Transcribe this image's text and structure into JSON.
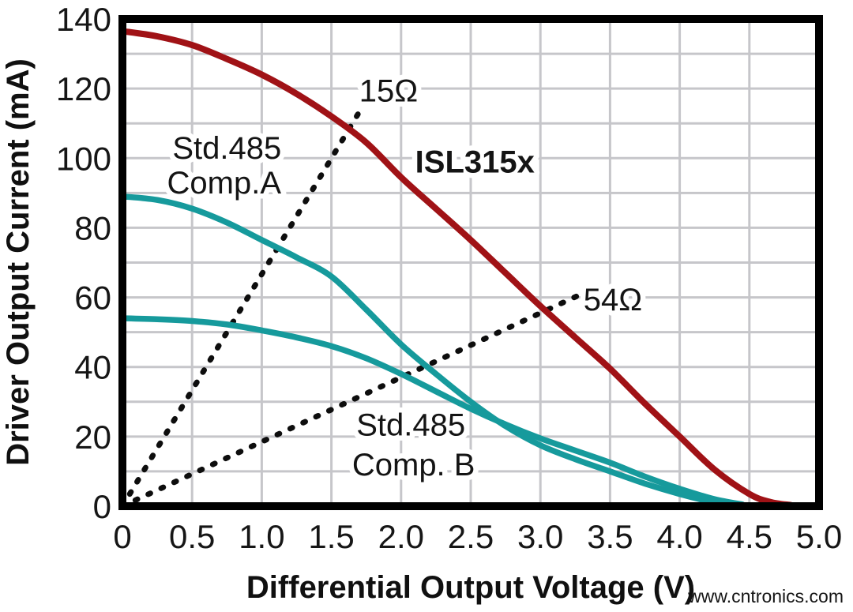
{
  "watermark": {
    "text": "www.cntronics.com",
    "color": "#b9d89d"
  },
  "chart_data": {
    "type": "line",
    "title": "",
    "xlabel": "Differential Output Voltage (V)",
    "ylabel": "Driver Output Current (mA)",
    "xlim": [
      0,
      5.0
    ],
    "ylim": [
      0,
      140
    ],
    "x_tick_values": [
      0,
      0.5,
      1.0,
      1.5,
      2.0,
      2.5,
      3.0,
      3.5,
      4.0,
      4.5,
      5.0
    ],
    "x_ticks": [
      "0",
      "0.5",
      "1.0",
      "1.5",
      "2.0",
      "2.5",
      "3.0",
      "3.5",
      "4.0",
      "4.5",
      "5.0"
    ],
    "y_tick_values": [
      0,
      20,
      40,
      60,
      80,
      100,
      120,
      140
    ],
    "y_ticks": [
      "0",
      "20",
      "40",
      "60",
      "80",
      "100",
      "120",
      "140"
    ],
    "grid": {
      "show": true,
      "x_step": 0.5,
      "y_step": 10,
      "color": "#c6c6ca",
      "width": 3
    },
    "axis_color": "#000000",
    "legend_position": "none",
    "series": [
      {
        "name": "54-ohm load line",
        "color": "#0d0d0d",
        "style": "dashed",
        "width": 7,
        "x": [
          0,
          3.27
        ],
        "y": [
          0,
          60.5
        ]
      },
      {
        "name": "15-ohm load line",
        "color": "#0d0d0d",
        "style": "dashed",
        "width": 7,
        "x": [
          0,
          1.7
        ],
        "y": [
          0,
          113.3
        ]
      },
      {
        "name": "Std.485 Comp. B",
        "color": "#169a9c",
        "style": "solid",
        "width": 7.5,
        "x": [
          0,
          0.25,
          0.5,
          0.75,
          1.0,
          1.25,
          1.5,
          1.75,
          2.0,
          2.25,
          2.5,
          2.75,
          3.0,
          3.25,
          3.5,
          3.75,
          4.0,
          4.25,
          4.45
        ],
        "y": [
          54,
          53.7,
          53.2,
          52.2,
          50.5,
          48.5,
          46,
          42.5,
          38,
          33,
          28,
          23.5,
          19.5,
          16,
          12.5,
          8.5,
          5,
          2,
          0.5
        ]
      },
      {
        "name": "Std.485 Comp.A",
        "color": "#169a9c",
        "style": "solid",
        "width": 7.5,
        "x": [
          0,
          0.25,
          0.5,
          0.75,
          1.0,
          1.25,
          1.5,
          1.75,
          2.0,
          2.25,
          2.5,
          2.75,
          3.0,
          3.25,
          3.5,
          3.75,
          4.0,
          4.2,
          4.35
        ],
        "y": [
          89,
          88,
          85.5,
          81.5,
          76.5,
          71.5,
          66,
          56.5,
          46.5,
          38,
          30,
          23,
          17.5,
          13.5,
          10,
          6.5,
          3.5,
          1.5,
          0.4
        ]
      },
      {
        "name": "ISL315x",
        "color": "#a01216",
        "style": "solid",
        "width": 8,
        "x": [
          0,
          0.25,
          0.5,
          0.75,
          1.0,
          1.25,
          1.5,
          1.75,
          2.0,
          2.25,
          2.5,
          2.75,
          3.0,
          3.25,
          3.5,
          3.75,
          4.0,
          4.25,
          4.5,
          4.65,
          4.8
        ],
        "y": [
          136.5,
          135,
          132.5,
          128.5,
          124,
          118.5,
          112,
          104.5,
          94.5,
          85.5,
          76.5,
          67,
          57.5,
          48.5,
          39.5,
          29.5,
          20,
          10.5,
          3.5,
          1.2,
          0.3
        ]
      }
    ],
    "annotations": [
      {
        "text": "15Ω",
        "x": 1.91,
        "y": 119.5,
        "color": "#111111",
        "bold": false
      },
      {
        "text": "ISL315x",
        "x": 2.53,
        "y": 99,
        "color": "#a01216",
        "bold": true
      },
      {
        "text": "Std.485",
        "x": 0.75,
        "y": 103,
        "color": "#1b9a9c",
        "bold": false
      },
      {
        "text": "Comp.A",
        "x": 0.73,
        "y": 93,
        "color": "#1b9a9c",
        "bold": false
      },
      {
        "text": "54Ω",
        "x": 3.52,
        "y": 59.5,
        "color": "#111111",
        "bold": false
      },
      {
        "text": "Std.485",
        "x": 2.07,
        "y": 23.5,
        "color": "#1b9a9c",
        "bold": false
      },
      {
        "text": "Comp. B",
        "x": 2.09,
        "y": 12,
        "color": "#1b9a9c",
        "bold": false
      }
    ]
  }
}
